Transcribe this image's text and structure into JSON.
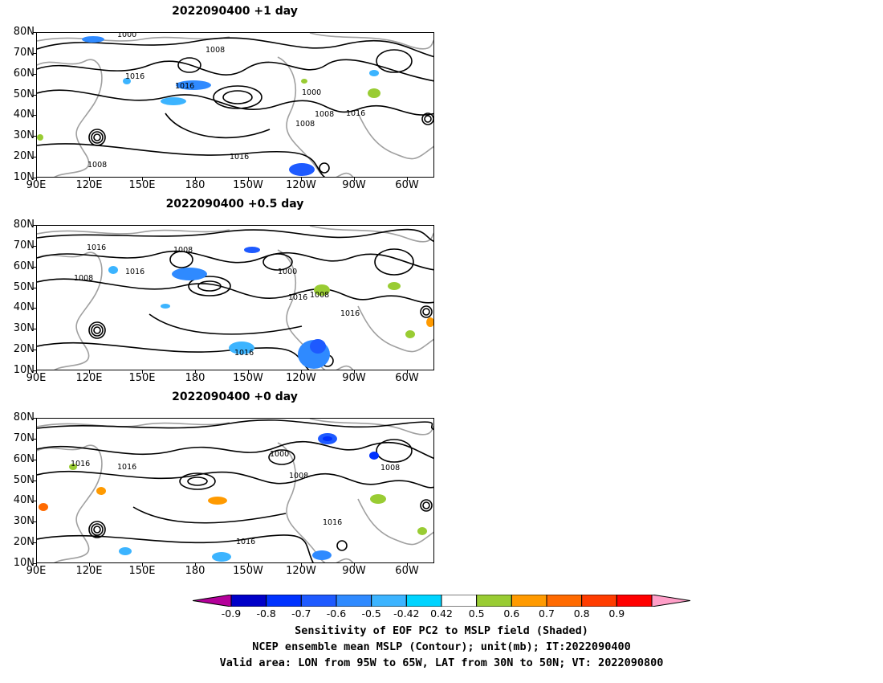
{
  "panels": [
    {
      "title": "2022090400  +1 day"
    },
    {
      "title": "2022090400  +0.5 day"
    },
    {
      "title": "2022090400  +0 day"
    }
  ],
  "lat_labels": [
    "80N",
    "70N",
    "60N",
    "50N",
    "40N",
    "30N",
    "20N",
    "10N"
  ],
  "lon_labels": [
    "90E",
    "120E",
    "150E",
    "180",
    "150W",
    "120W",
    "90W",
    "60W"
  ],
  "contour_labels": {
    "p1": [
      "1000",
      "1008",
      "1016",
      "1016",
      "1000",
      "1008",
      "1008",
      "1016",
      "1016",
      "1008"
    ],
    "p2": [
      "1016",
      "1008",
      "1016",
      "1008",
      "1000",
      "1016",
      "1008",
      "1016",
      "1016"
    ],
    "p3": [
      "1016",
      "1016",
      "1000",
      "1008",
      "1008",
      "1016",
      "1016"
    ]
  },
  "colorbar": {
    "levels": [
      "-0.9",
      "-0.8",
      "-0.7",
      "-0.6",
      "-0.5",
      "-0.42",
      "0.42",
      "0.5",
      "0.6",
      "0.7",
      "0.8",
      "0.9"
    ],
    "colors": [
      "#b4009a",
      "#0000c8",
      "#0032ff",
      "#1e5aff",
      "#2f8aff",
      "#3cb4ff",
      "#00d4ff",
      "#ffffff",
      "#99cc33",
      "#ff9a00",
      "#ff6a00",
      "#ff3c00",
      "#ff0000",
      "#ff9fc8"
    ]
  },
  "caption": {
    "line1": "Sensitivity of EOF PC2 to MSLP field (Shaded)",
    "line2": "NCEP ensemble mean MSLP (Contour); unit(mb); IT:2022090400",
    "line3": "Valid area: LON from 95W to 65W, LAT from 30N to 50N; VT: 2022090800"
  }
}
